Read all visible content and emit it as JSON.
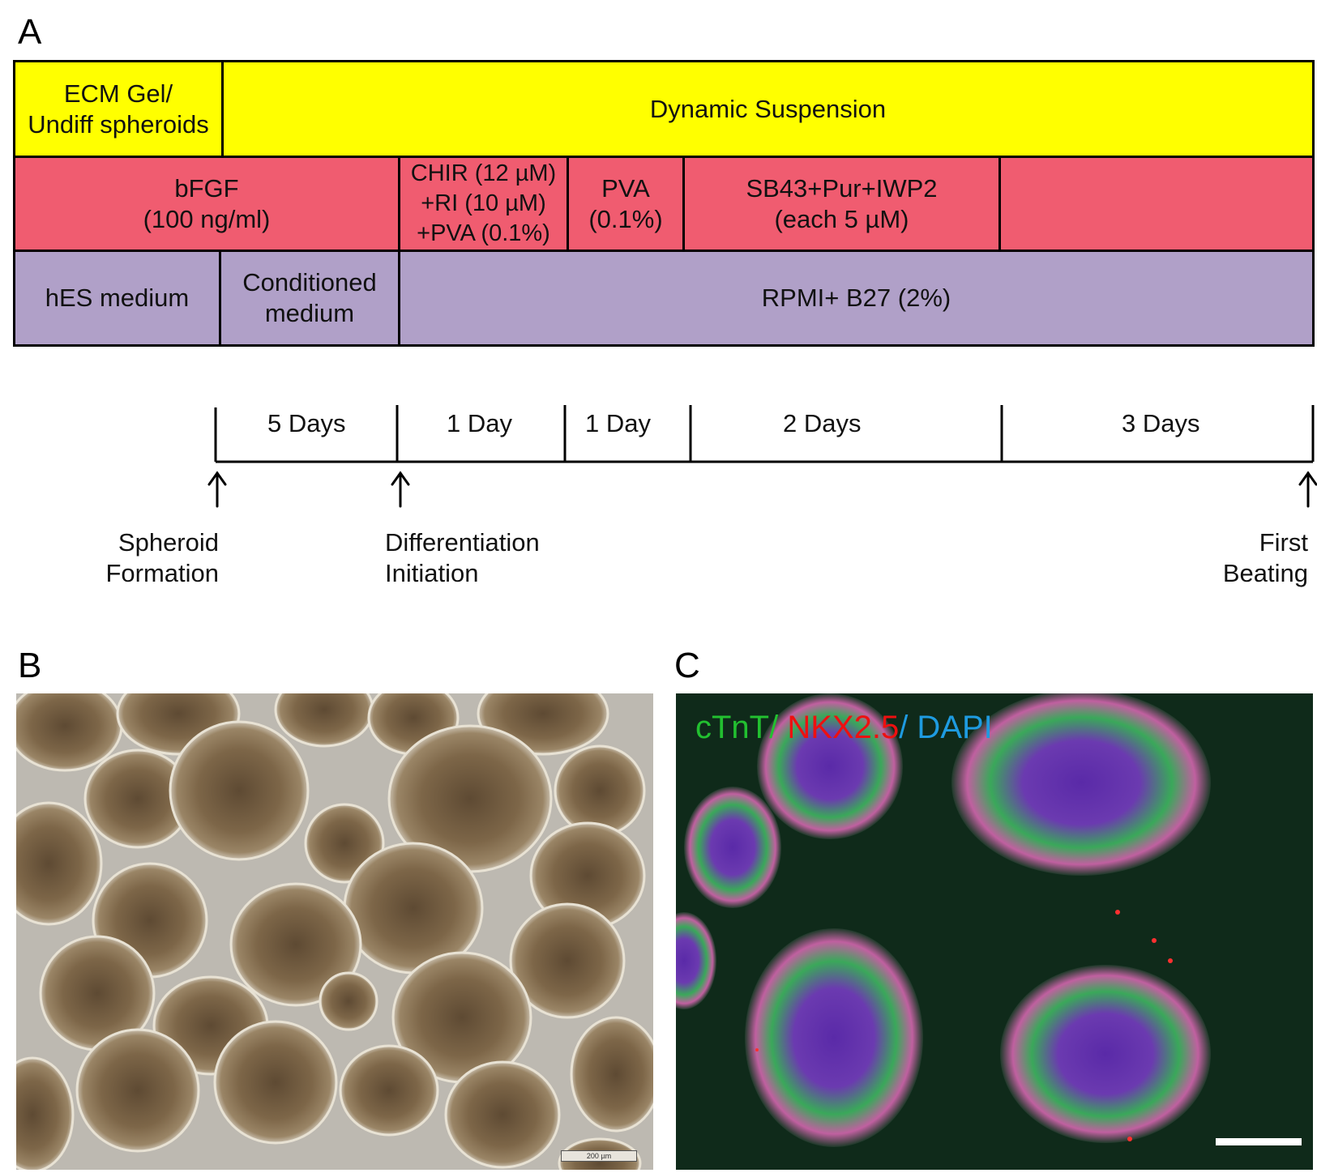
{
  "panels": {
    "a": "A",
    "b": "B",
    "c": "C"
  },
  "protocol": {
    "matrix_row": [
      {
        "text": "ECM Gel/\nUndiff spheroids"
      },
      {
        "text": "Dynamic Suspension"
      }
    ],
    "factor_row": [
      {
        "text": "bFGF\n(100 ng/ml)"
      },
      {
        "text": "CHIR (12 µM)\n+RI (10 µM)\n+PVA (0.1%)"
      },
      {
        "text": "PVA\n(0.1%)"
      },
      {
        "text": "SB43+Pur+IWP2\n(each 5 µM)"
      },
      {
        "text": ""
      }
    ],
    "medium_row": [
      {
        "text": "hES medium"
      },
      {
        "text": "Conditioned\nmedium"
      },
      {
        "text": "RPMI+ B27 (2%)"
      }
    ]
  },
  "timeline": {
    "durations": [
      "5 Days",
      "1 Day",
      "1 Day",
      "2 Days",
      "3 Days"
    ],
    "milestones": [
      {
        "text": "Spheroid\nFormation"
      },
      {
        "text": "Differentiation\nInitiation"
      },
      {
        "text": "First\nBeating"
      }
    ]
  },
  "panel_c": {
    "stains": [
      {
        "text": "cTnT/",
        "color": "#22c030"
      },
      {
        "text": " NKX2.5",
        "color": "#ee1010"
      },
      {
        "text": "/ DAPI",
        "color": "#1e9be0"
      }
    ]
  },
  "panel_b": {
    "scale_label": "200 µm"
  }
}
